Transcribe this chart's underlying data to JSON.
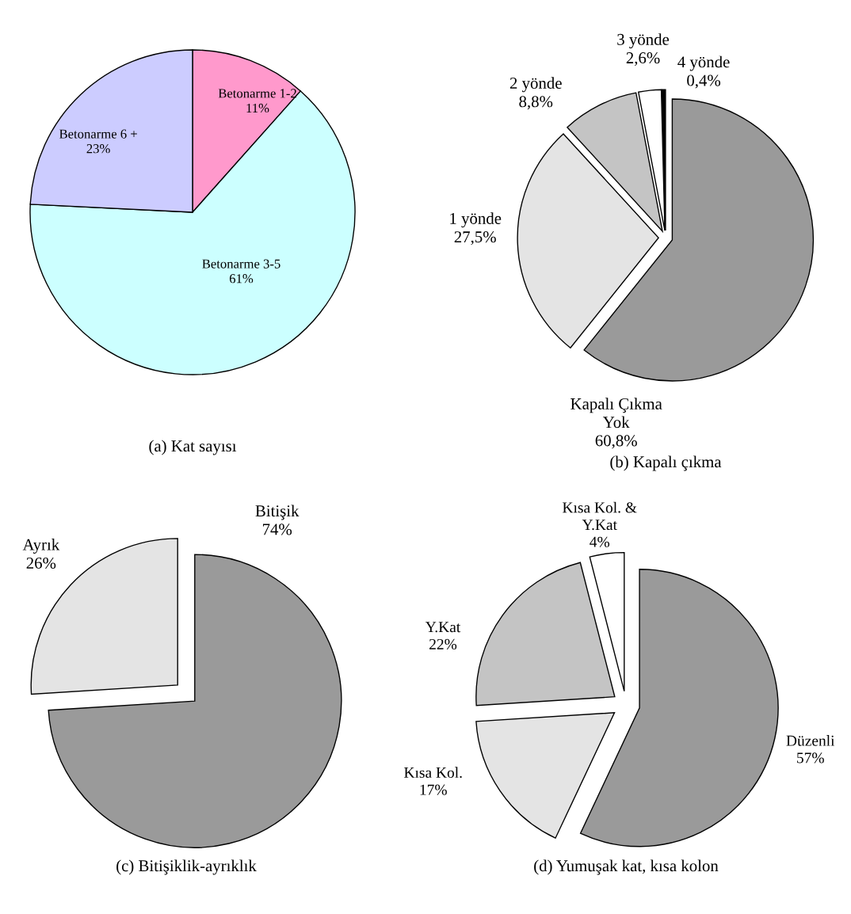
{
  "chart_data": [
    {
      "type": "pie",
      "title": "(a) Kat sayısı",
      "categories": [
        "Betonarme 1-2",
        "Betonarme 3-5",
        "Betonarme 6 +"
      ],
      "values": [
        11,
        61,
        23
      ],
      "value_labels": [
        "11%",
        "61%",
        "23%"
      ],
      "colors": [
        "#ff99cc",
        "#ccffff",
        "#ccccff"
      ]
    },
    {
      "type": "pie",
      "title": "(b) Kapalı çıkma",
      "categories": [
        "Kapalı Çıkma\nYok",
        "1 yönde",
        "2 yönde",
        "3 yönde",
        "4 yönde"
      ],
      "values": [
        60.8,
        27.5,
        8.8,
        2.6,
        0.4
      ],
      "value_labels": [
        "60,8%",
        "27,5%",
        "8,8%",
        "2,6%",
        "0,4%"
      ],
      "colors": [
        "#9a9a9a",
        "#e4e4e4",
        "#c4c4c4",
        "#ffffff",
        "#000000"
      ]
    },
    {
      "type": "pie",
      "title": "(c) Bitişiklik-ayrıklık",
      "categories": [
        "Bitişik",
        "Ayrık"
      ],
      "values": [
        74,
        26
      ],
      "value_labels": [
        "74%",
        "26%"
      ],
      "colors": [
        "#9a9a9a",
        "#e4e4e4"
      ]
    },
    {
      "type": "pie",
      "title": "(d) Yumuşak kat, kısa kolon",
      "categories": [
        "Düzenli",
        "Kısa Kol.",
        "Y.Kat",
        "Kısa Kol. &\nY.Kat"
      ],
      "values": [
        57,
        17,
        22,
        4
      ],
      "value_labels": [
        "57%",
        "17%",
        "22%",
        "4%"
      ],
      "colors": [
        "#9a9a9a",
        "#e4e4e4",
        "#c4c4c4",
        "#ffffff"
      ]
    }
  ]
}
